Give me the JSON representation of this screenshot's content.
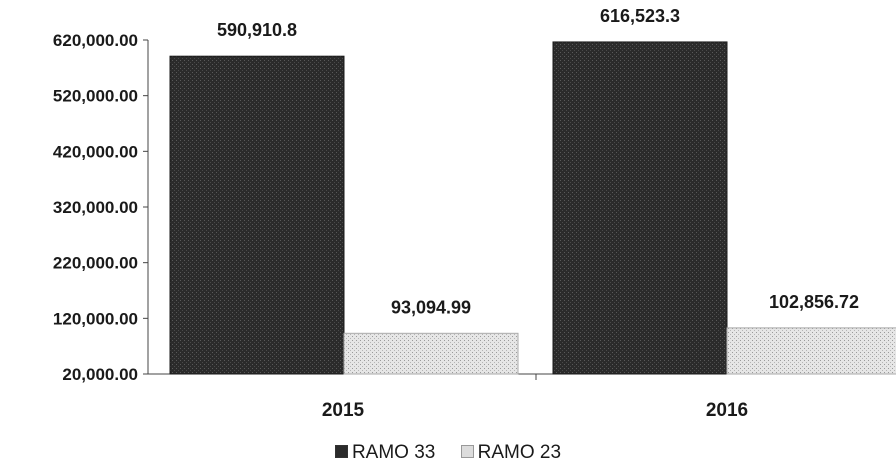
{
  "chart_data": {
    "type": "bar",
    "categories": [
      "2015",
      "2016"
    ],
    "series": [
      {
        "name": "RAMO 33",
        "values": [
          590910.8,
          616523.3
        ],
        "labels": [
          "590,910.8",
          "616,523.3"
        ],
        "color": "#2b2b2b"
      },
      {
        "name": "RAMO 23",
        "values": [
          93094.99,
          102856.72
        ],
        "labels": [
          "93,094.99",
          "102,856.72"
        ],
        "color": "#d9d9d9"
      }
    ],
    "yticks": [
      "20,000.00",
      "120,000.00",
      "220,000.00",
      "320,000.00",
      "420,000.00",
      "520,000.00",
      "620,000.00"
    ],
    "ylim": [
      20000,
      620000
    ],
    "legend_position": "bottom",
    "grid": false
  }
}
